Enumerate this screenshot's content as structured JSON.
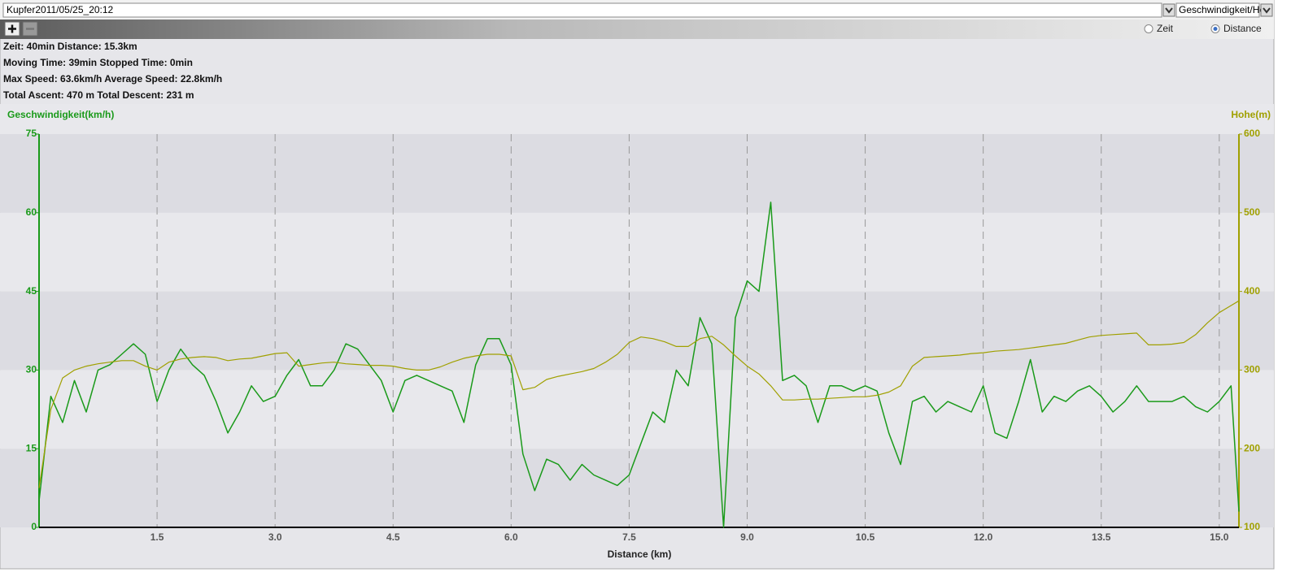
{
  "header": {
    "file_select": "Kupfer2011/05/25_20:12",
    "view_select": "Geschwindigkeit/Hoh"
  },
  "toolbar": {
    "options": [
      "Zeit",
      "Distance"
    ],
    "selected_index": 1
  },
  "stats": [
    "Zeit: 40min  Distance: 15.3km",
    "Moving Time: 39min  Stopped Time: 0min",
    "Max Speed: 63.6km/h  Average Speed: 22.8km/h",
    "Total Ascent: 470 m  Total Descent: 231 m"
  ],
  "chart_data": {
    "type": "line",
    "y_label": "Geschwindigkeit(km/h)",
    "y2_label": "Hohe(m)",
    "x_label": "Distance (km)",
    "x": [
      0,
      0.15,
      0.3,
      0.45,
      0.6,
      0.75,
      0.9,
      1.05,
      1.2,
      1.35,
      1.5,
      1.65,
      1.8,
      1.95,
      2.1,
      2.25,
      2.4,
      2.55,
      2.7,
      2.85,
      3,
      3.15,
      3.3,
      3.45,
      3.6,
      3.75,
      3.9,
      4.05,
      4.2,
      4.35,
      4.5,
      4.65,
      4.8,
      4.95,
      5.1,
      5.25,
      5.4,
      5.55,
      5.7,
      5.85,
      6,
      6.15,
      6.3,
      6.45,
      6.6,
      6.75,
      6.9,
      7.05,
      7.2,
      7.35,
      7.5,
      7.65,
      7.8,
      7.95,
      8.1,
      8.25,
      8.4,
      8.55,
      8.7,
      8.85,
      9,
      9.15,
      9.3,
      9.45,
      9.6,
      9.75,
      9.9,
      10.05,
      10.2,
      10.35,
      10.5,
      10.65,
      10.8,
      10.95,
      11.1,
      11.25,
      11.4,
      11.55,
      11.7,
      11.85,
      12,
      12.15,
      12.3,
      12.45,
      12.6,
      12.75,
      12.9,
      13.05,
      13.2,
      13.35,
      13.5,
      13.65,
      13.8,
      13.95,
      14.1,
      14.25,
      14.4,
      14.55,
      14.7,
      14.85,
      15,
      15.15,
      15.25
    ],
    "series": [
      {
        "color": "#1a9a1a",
        "values": [
          5,
          25,
          20,
          28,
          22,
          30,
          31,
          33,
          35,
          33,
          24,
          30,
          34,
          31,
          29,
          24,
          18,
          22,
          27,
          24,
          25,
          29,
          32,
          27,
          27,
          30,
          35,
          34,
          31,
          28,
          22,
          28,
          29,
          28,
          27,
          26,
          20,
          31,
          36,
          36,
          31,
          14,
          7,
          13,
          12,
          9,
          12,
          10,
          9,
          8,
          10,
          16,
          22,
          20,
          30,
          27,
          40,
          35,
          0,
          40,
          47,
          45,
          62,
          28,
          29,
          27,
          20,
          27,
          27,
          26,
          27,
          26,
          18,
          12,
          24,
          25,
          22,
          24,
          23,
          22,
          27,
          18,
          17,
          24,
          32,
          22,
          25,
          24,
          26,
          27,
          25,
          22,
          24,
          27,
          24,
          24,
          24,
          25,
          23,
          22,
          24,
          27,
          3
        ]
      },
      {
        "color": "#a0a000",
        "axis": "y2",
        "values": [
          150,
          250,
          290,
          300,
          305,
          308,
          310,
          312,
          312,
          305,
          300,
          310,
          314,
          316,
          317,
          316,
          312,
          314,
          315,
          318,
          321,
          322,
          305,
          307,
          309,
          310,
          308,
          307,
          306,
          306,
          305,
          302,
          300,
          300,
          304,
          310,
          315,
          318,
          320,
          320,
          318,
          275,
          278,
          288,
          292,
          295,
          298,
          302,
          310,
          320,
          335,
          342,
          340,
          336,
          330,
          330,
          340,
          343,
          332,
          318,
          305,
          295,
          280,
          262,
          262,
          263,
          263,
          264,
          265,
          266,
          266,
          268,
          272,
          280,
          305,
          316,
          317,
          318,
          319,
          321,
          322,
          324,
          325,
          326,
          328,
          330,
          332,
          334,
          338,
          342,
          344,
          345,
          346,
          347,
          332,
          332,
          333,
          335,
          345,
          360,
          373,
          382,
          388
        ]
      }
    ],
    "xlim": [
      0,
      15.25
    ],
    "xticks": [
      1.5,
      {
        "value": 3,
        "label": "3.0"
      },
      4.5,
      {
        "value": 6,
        "label": "6.0"
      },
      7.5,
      {
        "value": 9,
        "label": "9.0"
      },
      10.5,
      {
        "value": 12,
        "label": "12.0"
      },
      13.5,
      {
        "value": 15,
        "label": "15.0"
      }
    ],
    "ylim": [
      0,
      75
    ],
    "yticks": [
      0,
      15,
      30,
      45,
      60,
      75
    ],
    "y2lim": [
      100,
      600
    ],
    "y2ticks": [
      100,
      200,
      300,
      400,
      500,
      600
    ],
    "grid": true
  }
}
